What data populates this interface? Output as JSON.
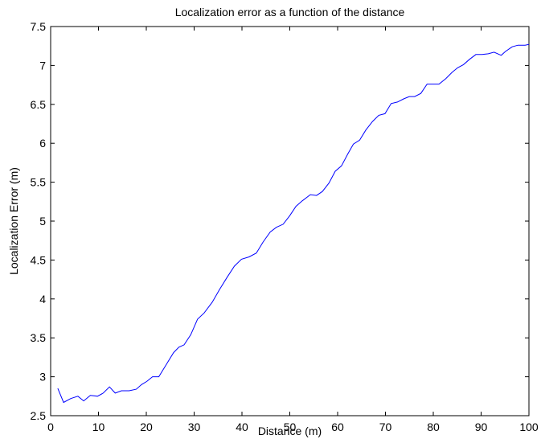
{
  "chart_data": {
    "type": "line",
    "title": "Localization error as a function of the distance",
    "xlabel": "Distance (m)",
    "ylabel": "Localization Error (m)",
    "xlim": [
      0,
      100
    ],
    "ylim": [
      2.5,
      7.5
    ],
    "xticks": [
      0,
      10,
      20,
      30,
      40,
      50,
      60,
      70,
      80,
      90,
      100
    ],
    "yticks": [
      2.5,
      3,
      3.5,
      4,
      4.5,
      5,
      5.5,
      6,
      6.5,
      7,
      7.5
    ],
    "xtick_labels": [
      "0",
      "10",
      "20",
      "30",
      "40",
      "50",
      "60",
      "70",
      "80",
      "90",
      "100"
    ],
    "ytick_labels": [
      "2.5",
      "3",
      "3.5",
      "4",
      "4.5",
      "5",
      "5.5",
      "6",
      "6.5",
      "7",
      "7.5"
    ],
    "grid": false,
    "line_color": "#0000ff",
    "series": [
      {
        "x": [
          1.5,
          2.7,
          4.2,
          5.7,
          6.9,
          8.3,
          9.8,
          11.0,
          12.3,
          13.5,
          14.8,
          16.4,
          17.9,
          19.0,
          20.1,
          21.3,
          22.6,
          24.1,
          25.7,
          26.8,
          27.9,
          29.3,
          30.7,
          32.1,
          33.8,
          35.3,
          36.8,
          38.4,
          39.9,
          41.5,
          43.0,
          44.4,
          45.9,
          47.2,
          48.6,
          50.0,
          51.3,
          52.6,
          54.3,
          55.6,
          56.8,
          58.2,
          59.5,
          60.8,
          62.1,
          63.3,
          64.6,
          65.9,
          67.3,
          68.6,
          69.9,
          71.2,
          72.5,
          73.8,
          75.0,
          76.1,
          77.4,
          78.7,
          79.9,
          81.2,
          82.6,
          83.9,
          85.1,
          86.3,
          87.6,
          88.9,
          90.2,
          91.5,
          92.7,
          94.2,
          95.1,
          96.5,
          97.7,
          99.2,
          100.0
        ],
        "y": [
          2.85,
          2.67,
          2.72,
          2.75,
          2.69,
          2.76,
          2.75,
          2.79,
          2.87,
          2.79,
          2.82,
          2.82,
          2.84,
          2.9,
          2.94,
          3.0,
          3.0,
          3.15,
          3.31,
          3.38,
          3.41,
          3.54,
          3.74,
          3.82,
          3.96,
          4.12,
          4.27,
          4.42,
          4.51,
          4.54,
          4.59,
          4.73,
          4.86,
          4.92,
          4.96,
          5.07,
          5.19,
          5.26,
          5.34,
          5.33,
          5.38,
          5.49,
          5.64,
          5.71,
          5.86,
          5.99,
          6.04,
          6.17,
          6.28,
          6.36,
          6.38,
          6.51,
          6.53,
          6.57,
          6.6,
          6.6,
          6.64,
          6.76,
          6.76,
          6.76,
          6.83,
          6.91,
          6.97,
          7.01,
          7.08,
          7.14,
          7.14,
          7.15,
          7.17,
          7.13,
          7.18,
          7.24,
          7.26,
          7.26,
          7.27
        ]
      }
    ]
  }
}
